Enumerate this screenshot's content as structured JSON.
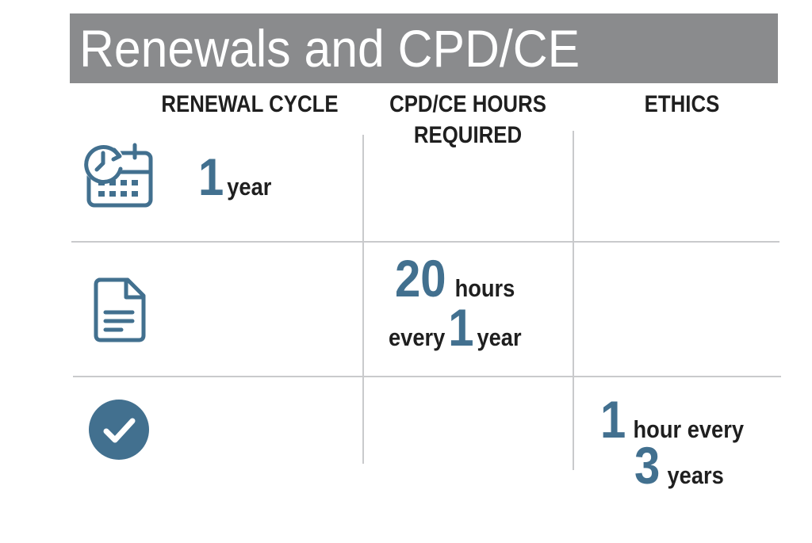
{
  "title": "Renewals and CPD/CE",
  "headers": {
    "renewal_cycle": "RENEWAL CYCLE",
    "hours_line1": "CPD/CE HOURS",
    "hours_line2": "REQUIRED",
    "ethics": "ETHICS"
  },
  "renewal": {
    "number": "1",
    "unit": "year"
  },
  "hours": {
    "number": "20",
    "unit": "hours",
    "every": "every",
    "period_number": "1",
    "period_unit": "year"
  },
  "ethics": {
    "number": "1",
    "unit": "hour every",
    "period_number": "3",
    "period_unit": "years"
  },
  "icons": {
    "row1": "calendar-clock-icon",
    "row2": "document-icon",
    "row3": "checkmark-circle-icon"
  },
  "colors": {
    "accent": "#42708f",
    "title_bar": "#8a8b8d",
    "grid": "#c9cacc"
  }
}
